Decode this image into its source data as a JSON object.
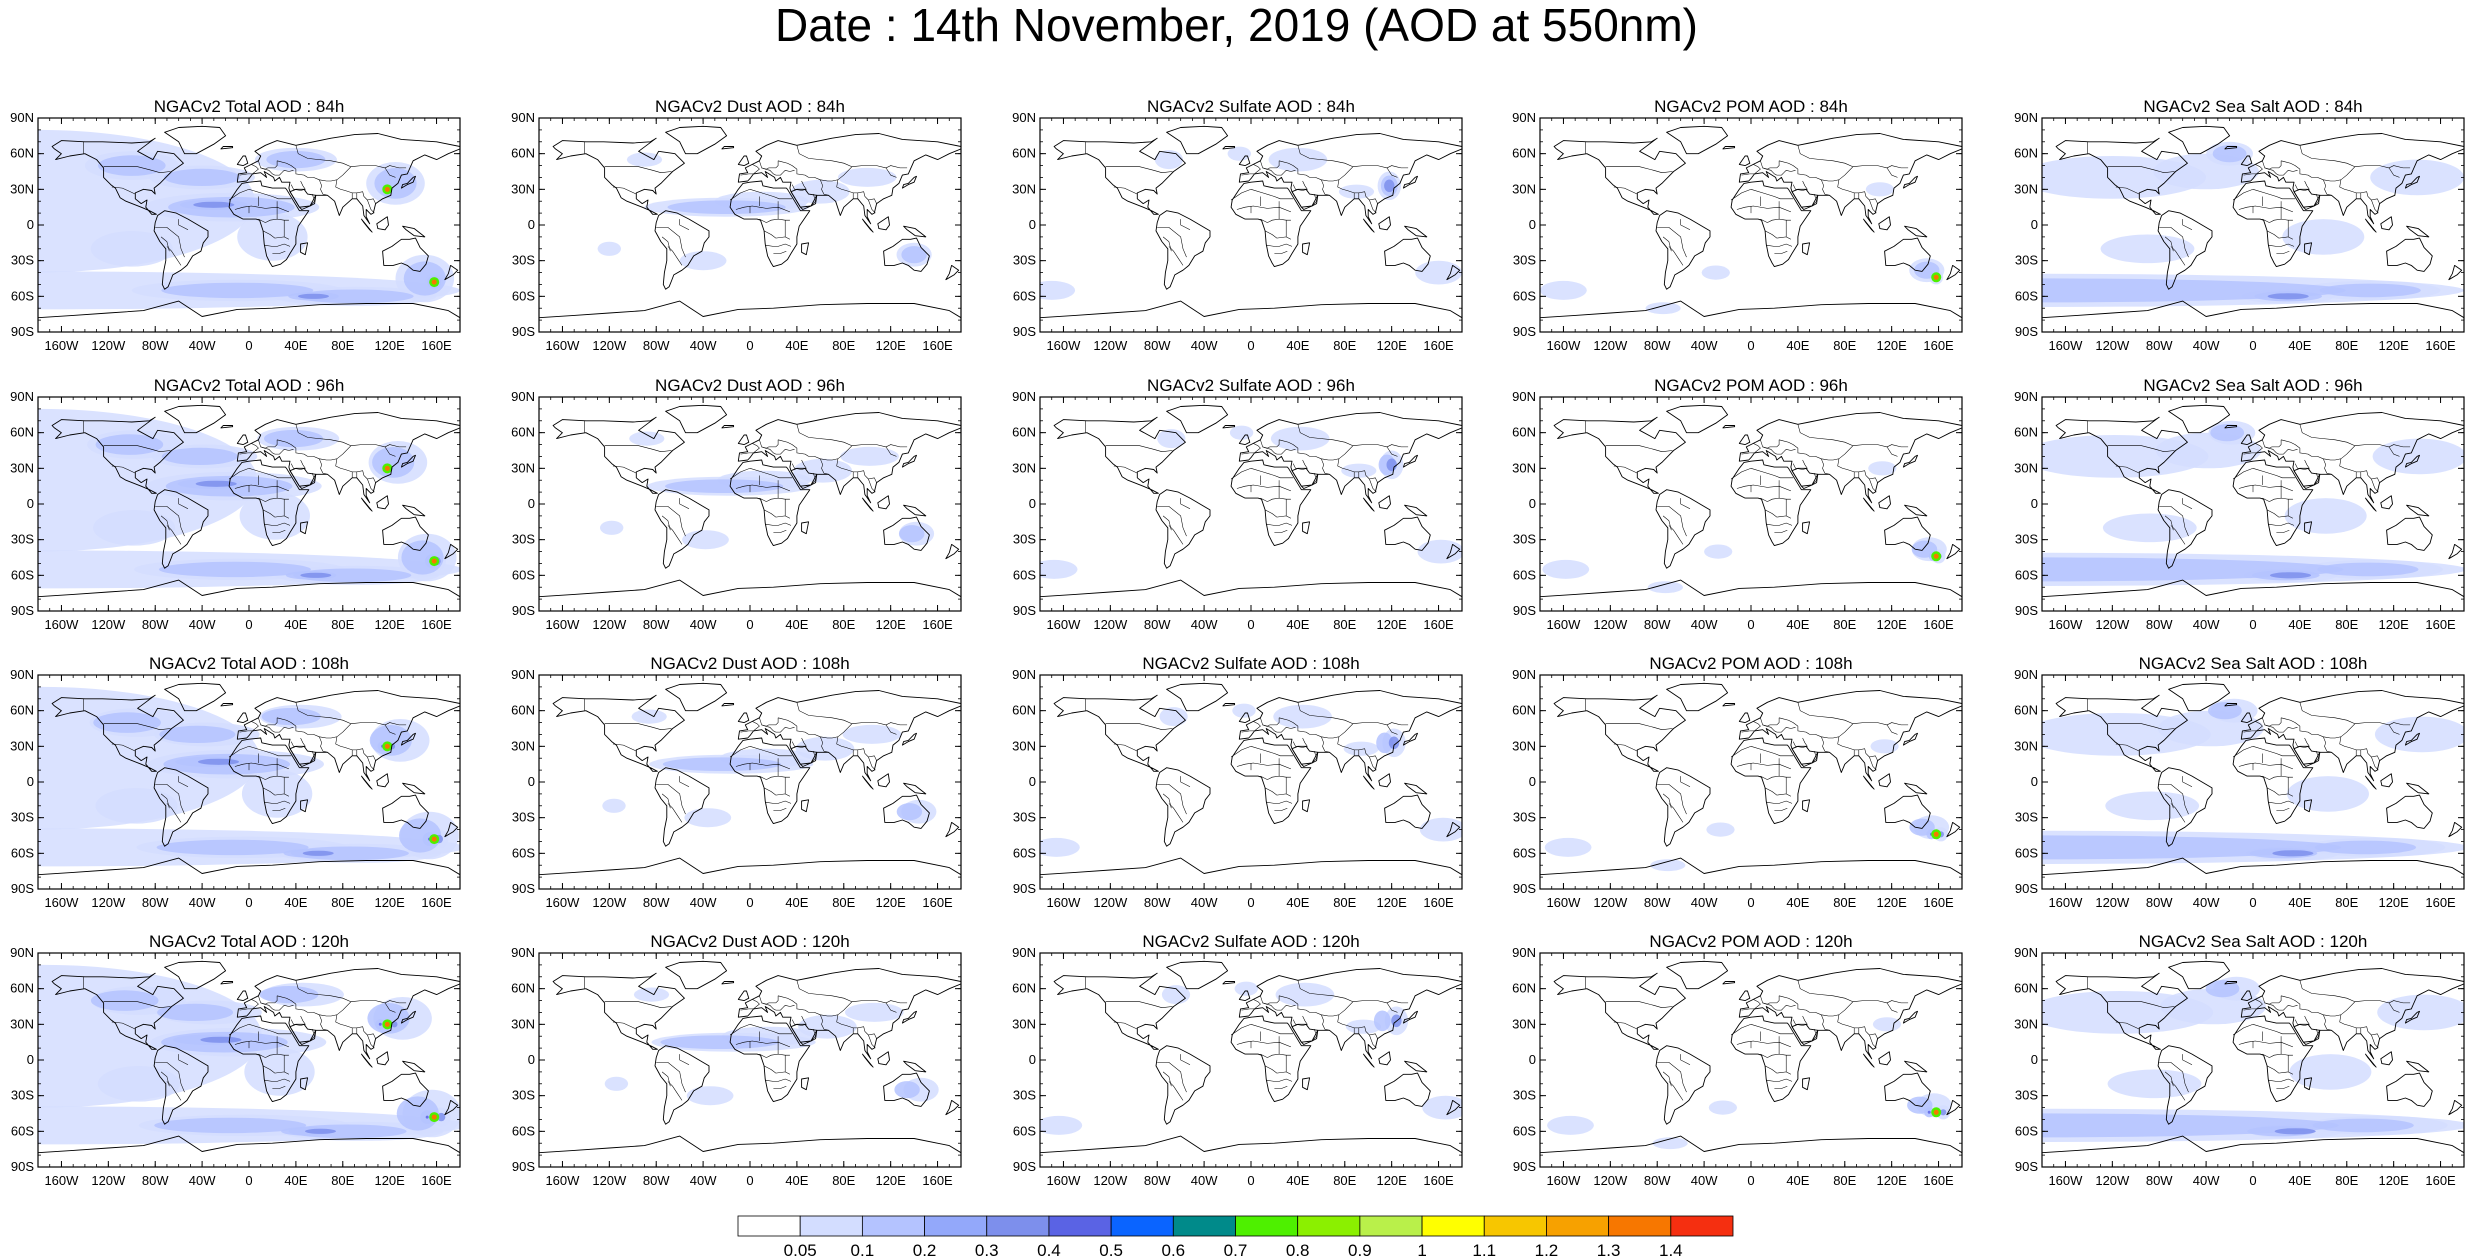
{
  "title": "Date : 14th November, 2019 (AOD at 550nm)",
  "grid": {
    "columns": [
      "Total",
      "Dust",
      "Sulfate",
      "POM",
      "Sea Salt"
    ],
    "rows": [
      "84h",
      "96h",
      "108h",
      "120h"
    ]
  },
  "panels": [
    {
      "title": "NGACv2 Total AOD : 84h",
      "species": "Total",
      "lead": "84h"
    },
    {
      "title": "NGACv2 Dust AOD : 84h",
      "species": "Dust",
      "lead": "84h"
    },
    {
      "title": "NGACv2 Sulfate AOD : 84h",
      "species": "Sulfate",
      "lead": "84h"
    },
    {
      "title": "NGACv2 POM AOD : 84h",
      "species": "POM",
      "lead": "84h"
    },
    {
      "title": "NGACv2 Sea Salt AOD : 84h",
      "species": "Sea Salt",
      "lead": "84h"
    },
    {
      "title": "NGACv2 Total AOD : 96h",
      "species": "Total",
      "lead": "96h"
    },
    {
      "title": "NGACv2 Dust AOD : 96h",
      "species": "Dust",
      "lead": "96h"
    },
    {
      "title": "NGACv2 Sulfate AOD : 96h",
      "species": "Sulfate",
      "lead": "96h"
    },
    {
      "title": "NGACv2 POM AOD : 96h",
      "species": "POM",
      "lead": "96h"
    },
    {
      "title": "NGACv2 Sea Salt AOD : 96h",
      "species": "Sea Salt",
      "lead": "96h"
    },
    {
      "title": "NGACv2 Total AOD : 108h",
      "species": "Total",
      "lead": "108h"
    },
    {
      "title": "NGACv2 Dust AOD : 108h",
      "species": "Dust",
      "lead": "108h"
    },
    {
      "title": "NGACv2 Sulfate AOD : 108h",
      "species": "Sulfate",
      "lead": "108h"
    },
    {
      "title": "NGACv2 POM AOD : 108h",
      "species": "POM",
      "lead": "108h"
    },
    {
      "title": "NGACv2 Sea Salt AOD : 108h",
      "species": "Sea Salt",
      "lead": "108h"
    },
    {
      "title": "NGACv2 Total AOD : 120h",
      "species": "Total",
      "lead": "120h"
    },
    {
      "title": "NGACv2 Dust AOD : 120h",
      "species": "Dust",
      "lead": "120h"
    },
    {
      "title": "NGACv2 Sulfate AOD : 120h",
      "species": "Sulfate",
      "lead": "120h"
    },
    {
      "title": "NGACv2 POM AOD : 120h",
      "species": "POM",
      "lead": "120h"
    },
    {
      "title": "NGACv2 Sea Salt  AOD : 120h",
      "species": "Sea Salt",
      "lead": "120h"
    }
  ],
  "lat_ticks": [
    "90N",
    "60N",
    "30N",
    "0",
    "30S",
    "60S",
    "90S"
  ],
  "lon_ticks": [
    "160W",
    "120W",
    "80W",
    "40W",
    "0",
    "40E",
    "80E",
    "120E",
    "160E"
  ],
  "lat_values": [
    90,
    60,
    30,
    0,
    -30,
    -60,
    -90
  ],
  "lon_values": [
    -160,
    -120,
    -80,
    -40,
    0,
    40,
    80,
    120,
    160
  ],
  "colorbar": {
    "colors": [
      "#ffffff",
      "#d3ddff",
      "#b4c3ff",
      "#93a8fa",
      "#7d8fec",
      "#5a63e4",
      "#0a64ff",
      "#008a8a",
      "#4ef000",
      "#8bf000",
      "#b9f04a",
      "#ffff00",
      "#f7c600",
      "#f7a100",
      "#f77700",
      "#f52f10"
    ],
    "labels": [
      "0.05",
      "0.1",
      "0.2",
      "0.3",
      "0.4",
      "0.5",
      "0.6",
      "0.7",
      "0.8",
      "0.9",
      "1",
      "1.1",
      "1.2",
      "1.3",
      "1.4"
    ]
  },
  "style": {
    "coast_color": "#000000",
    "aod_light": "#d3ddff",
    "aod_mid": "#b4c3ff",
    "aod_high": "#7d8fec",
    "aod_peak": "#5a63e4"
  }
}
